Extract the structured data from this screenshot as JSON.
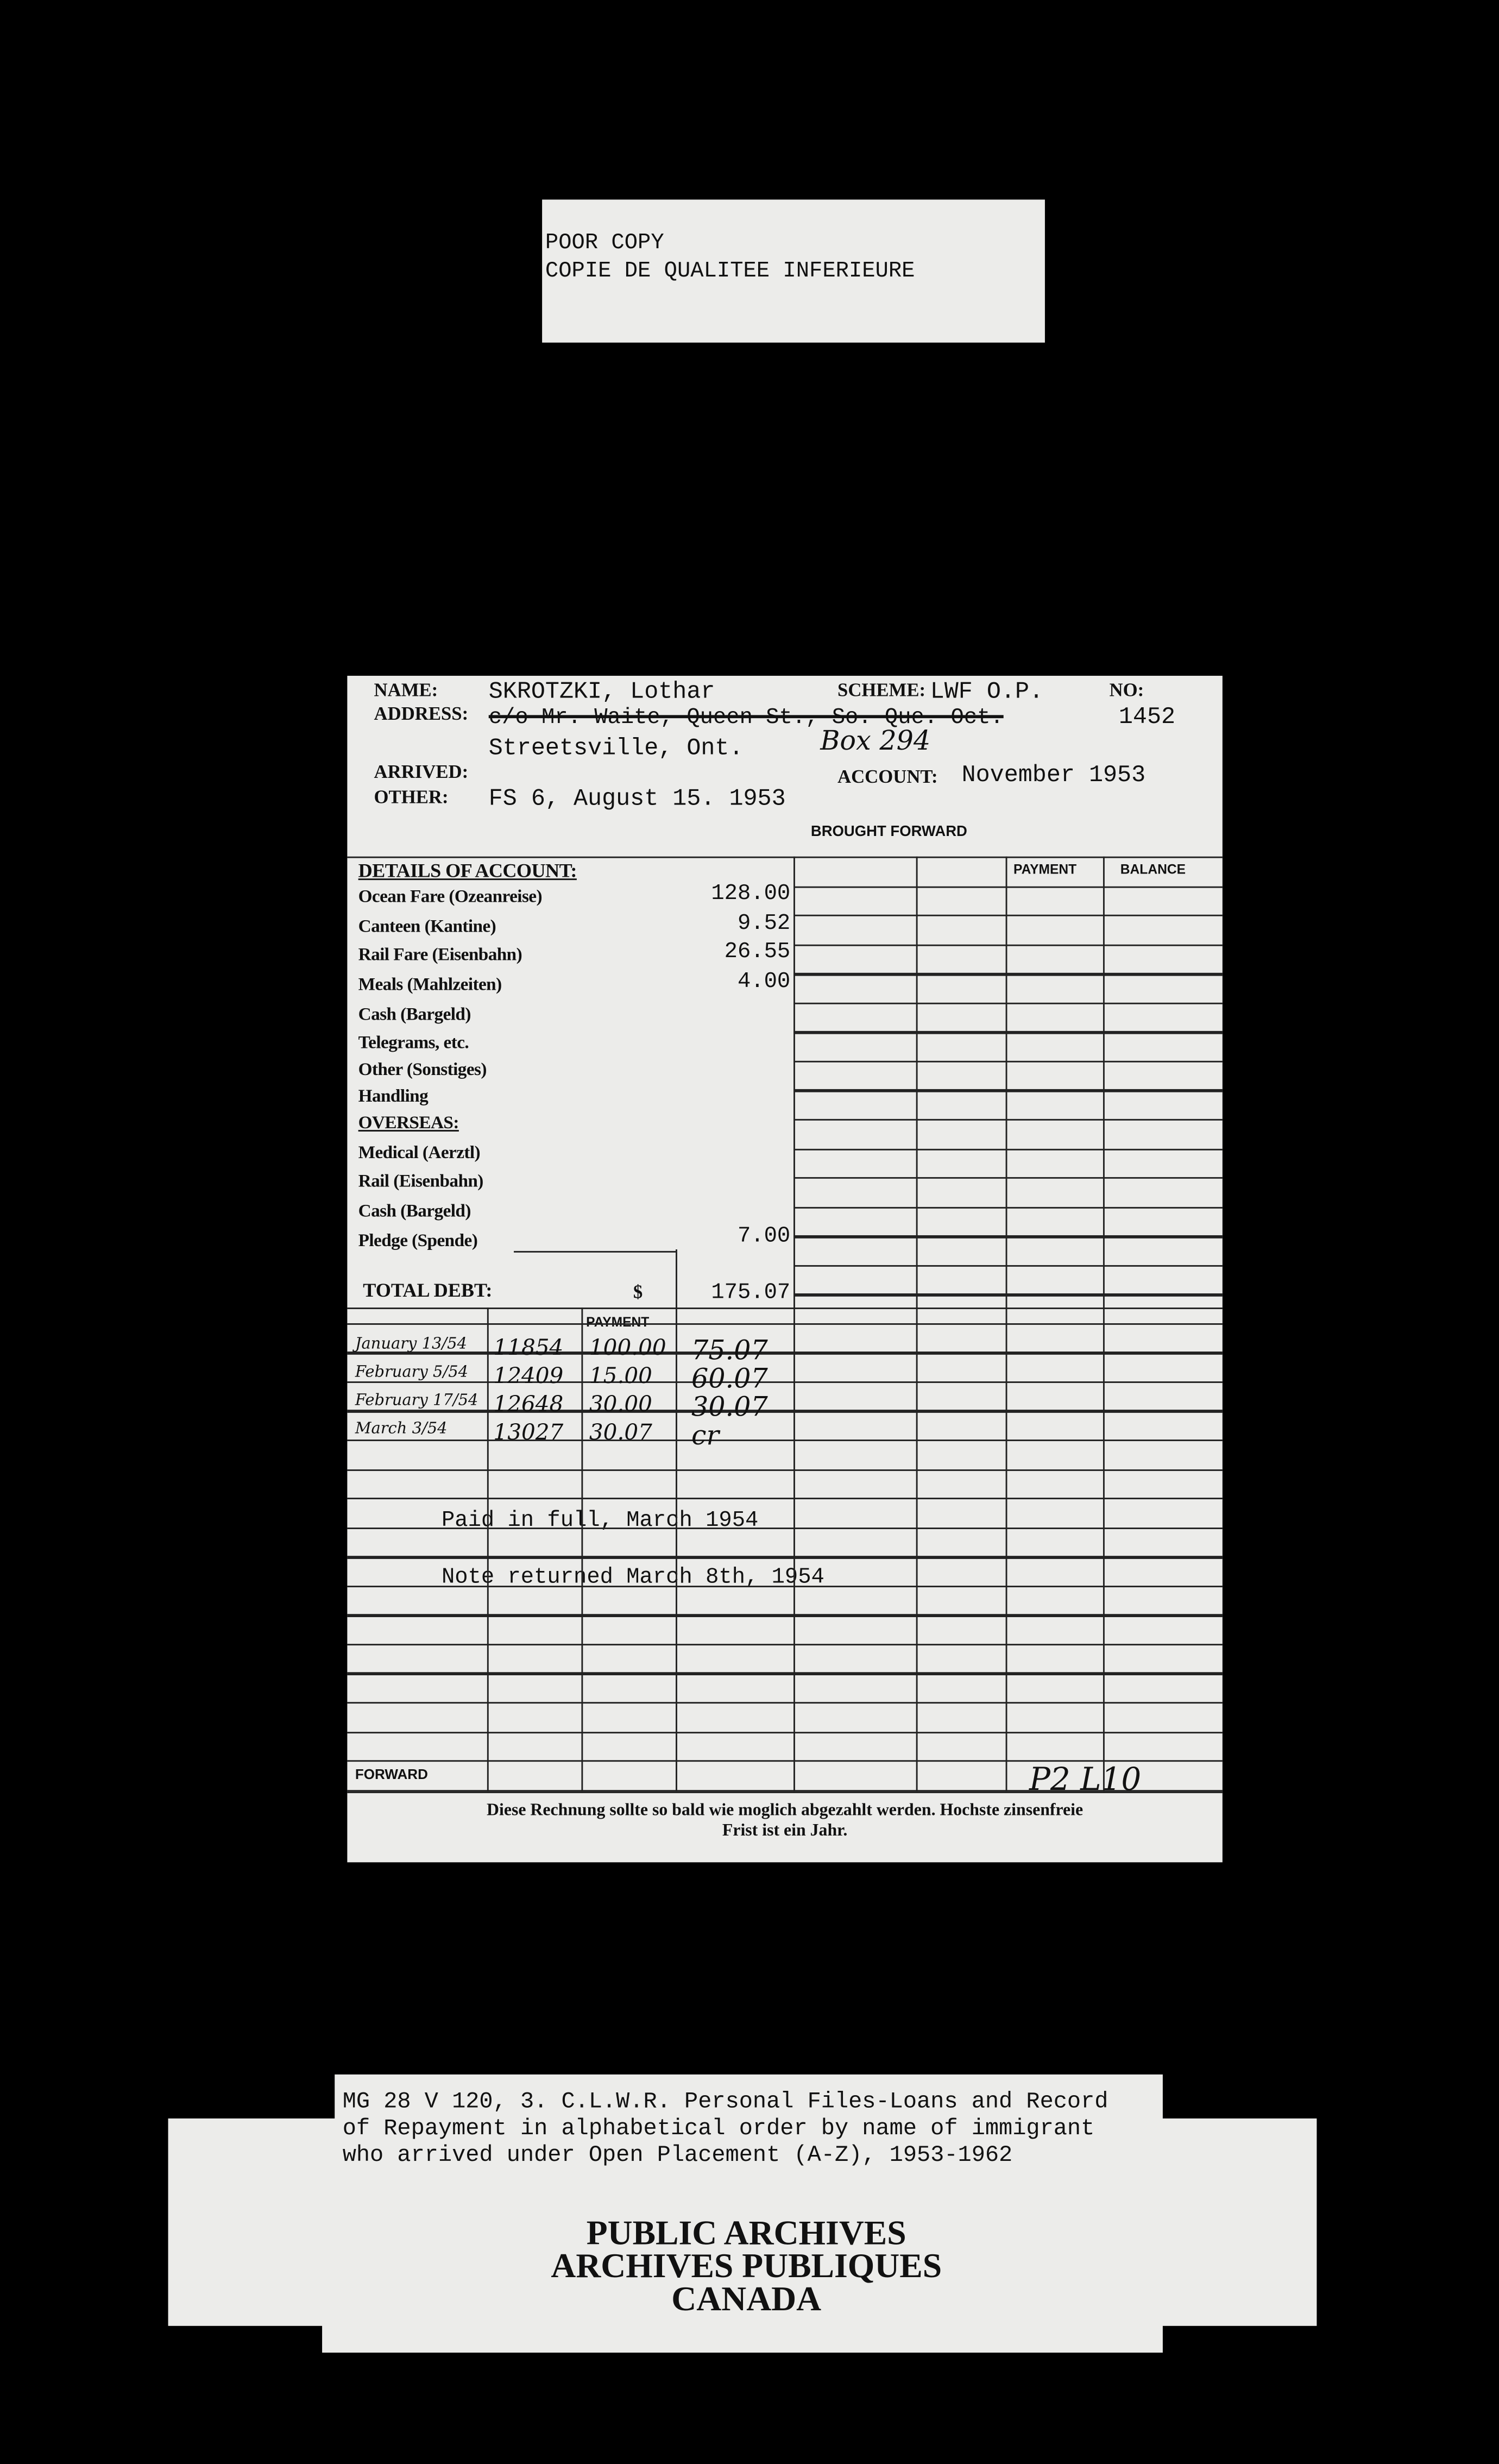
{
  "poor_copy": {
    "line1": "POOR COPY",
    "line2": "COPIE DE QUALITEE INFERIEURE"
  },
  "card": {
    "name_label": "NAME:",
    "name": "SKROTZKI, Lothar",
    "scheme_label": "SCHEME:",
    "scheme": "LWF O.P.",
    "no_label": "NO:",
    "no": "1452",
    "address_label": "ADDRESS:",
    "address_struck": "c/o Mr. Waite, Queen St., So. Que. Oct.",
    "address_line2": "Streetsville, Ont.",
    "address_hand": "Box 294",
    "arrived_label": "ARRIVED:",
    "account_label": "ACCOUNT:",
    "account": "November 1953",
    "other_label": "OTHER:",
    "other": "FS 6, August 15. 1953",
    "brought_forward": "BROUGHT FORWARD",
    "payment_header": "PAYMENT",
    "balance_header": "BALANCE",
    "details_heading": "DETAILS OF ACCOUNT:",
    "details": [
      {
        "label": "Ocean Fare (Ozeanreise)",
        "amount": "128.00"
      },
      {
        "label": "Canteen (Kantine)",
        "amount": "9.52"
      },
      {
        "label": "Rail Fare (Eisenbahn)",
        "amount": "26.55"
      },
      {
        "label": "Meals (Mahlzeiten)",
        "amount": "4.00"
      },
      {
        "label": "Cash (Bargeld)",
        "amount": ""
      },
      {
        "label": "Telegrams, etc.",
        "amount": ""
      },
      {
        "label": "Other (Sonstiges)",
        "amount": ""
      },
      {
        "label": "Handling",
        "amount": ""
      }
    ],
    "overseas_heading": "OVERSEAS:",
    "overseas": [
      {
        "label": "Medical (Aerztl)",
        "amount": ""
      },
      {
        "label": "Rail (Eisenbahn)",
        "amount": ""
      },
      {
        "label": "Cash (Bargeld)",
        "amount": ""
      },
      {
        "label": "Pledge (Spende)",
        "amount": "7.00"
      }
    ],
    "total_label": "TOTAL DEBT:",
    "currency": "$",
    "total": "175.07",
    "ledger_payment_header": "PAYMENT",
    "payments": [
      {
        "date": "January 13/54",
        "receipt": "11854",
        "payment": "100.00",
        "balance": "75.07"
      },
      {
        "date": "February 5/54",
        "receipt": "12409",
        "payment": "15.00",
        "balance": "60.07"
      },
      {
        "date": "February 17/54",
        "receipt": "12648",
        "payment": "30.00",
        "balance": "30.07"
      },
      {
        "date": "March 3/54",
        "receipt": "13027",
        "payment": "30.07",
        "balance": "cr"
      }
    ],
    "note1": "Paid in full, March 1954",
    "note2": "Note returned March 8th, 1954",
    "forward_label": "FORWARD",
    "hand_initials": "P2 L10",
    "footer_line1": "Diese Rechnung sollte so bald wie moglich abgezahlt werden. Hochste zinsenfreie",
    "footer_line2": "Frist ist ein Jahr."
  },
  "caption": {
    "line1": "MG 28 V 120, 3. C.L.W.R. Personal Files-Loans and Record",
    "line2": "of Repayment in alphabetical order by name of immigrant",
    "line3": "who arrived under Open Placement (A-Z), 1953-1962"
  },
  "archives_stamp": {
    "line1": "PUBLIC ARCHIVES",
    "line2": "ARCHIVES PUBLIQUES",
    "line3": "CANADA"
  }
}
